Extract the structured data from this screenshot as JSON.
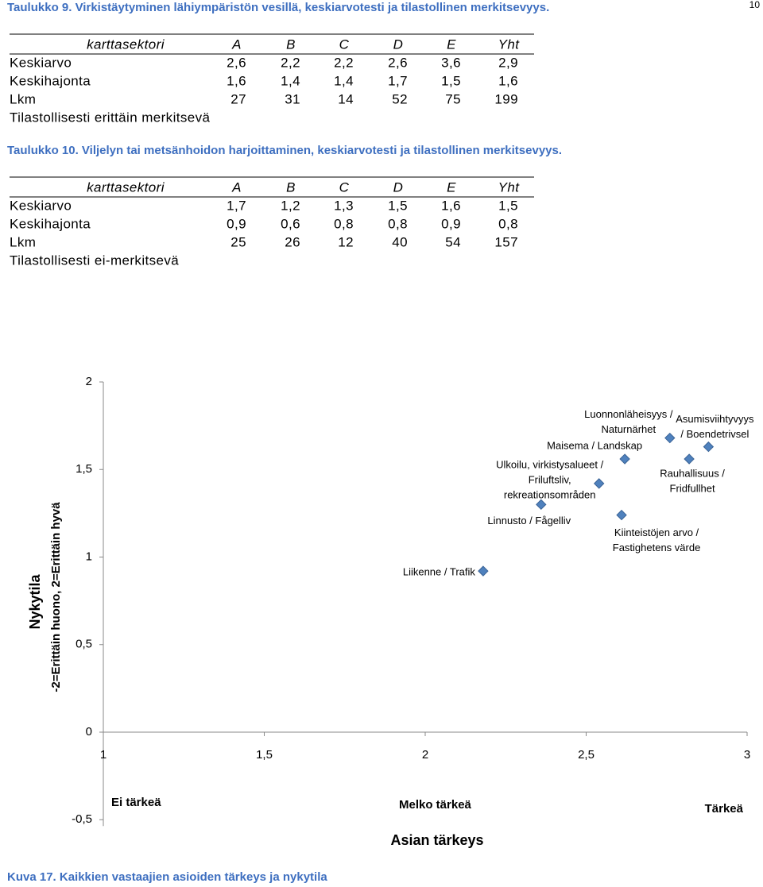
{
  "page_number": "10",
  "tables": [
    {
      "caption": "Taulukko 9. Virkistäytyminen lähiympäristön vesillä, keskiarvotesti ja tilastollinen merkitsevyys.",
      "columns": [
        "karttasektori",
        "A",
        "B",
        "C",
        "D",
        "E",
        "Yht"
      ],
      "rows": [
        [
          "Keskiarvo",
          "2,6",
          "2,2",
          "2,2",
          "2,6",
          "3,6",
          "2,9"
        ],
        [
          "Keskihajonta",
          "1,6",
          "1,4",
          "1,4",
          "1,7",
          "1,5",
          "1,6"
        ],
        [
          "Lkm",
          "27",
          "31",
          "14",
          "52",
          "75",
          "199"
        ]
      ],
      "note": "Tilastollisesti erittäin merkitsevä"
    },
    {
      "caption": "Taulukko 10. Viljelyn tai metsänhoidon harjoittaminen, keskiarvotesti ja tilastollinen merkitsevyys.",
      "columns": [
        "karttasektori",
        "A",
        "B",
        "C",
        "D",
        "E",
        "Yht"
      ],
      "rows": [
        [
          "Keskiarvo",
          "1,7",
          "1,2",
          "1,3",
          "1,5",
          "1,6",
          "1,5"
        ],
        [
          "Keskihajonta",
          "0,9",
          "0,6",
          "0,8",
          "0,8",
          "0,9",
          "0,8"
        ],
        [
          "Lkm",
          "25",
          "26",
          "12",
          "40",
          "54",
          "157"
        ]
      ],
      "note": "Tilastollisesti ei-merkitsevä"
    }
  ],
  "chart_data": {
    "type": "scatter",
    "x": [
      2.18,
      2.36,
      2.54,
      2.62,
      2.61,
      2.76,
      2.82,
      2.88
    ],
    "values": [
      0.92,
      1.3,
      1.42,
      1.56,
      1.24,
      1.68,
      1.56,
      1.63
    ],
    "point_labels": [
      [
        "Liikenne / Trafik"
      ],
      [
        "Linnusto / Fågelliv"
      ],
      [
        "Ulkoilu, virkistysalueet /",
        "Friluftsliv,",
        "rekreationsområden"
      ],
      [
        "Maisema / Landskap"
      ],
      [
        "Kiinteistöjen arvo /",
        "Fastighetens värde"
      ],
      [
        "Luonnonläheisyys /",
        "Naturnärhet"
      ],
      [
        "Rauhallisuus /",
        "Fridfullhet"
      ],
      [
        "Asumisviihtyvyys",
        "/ Boendetrivsel"
      ]
    ],
    "color": "#4f81bd",
    "xlim": [
      1,
      3
    ],
    "xticks": [
      1,
      {
        "value": 1.5,
        "label": "1,5"
      },
      2,
      {
        "value": 2.5,
        "label": "2,5"
      },
      3
    ],
    "ylim": [
      -0.5,
      2
    ],
    "yticks": [
      {
        "value": -0.5,
        "label": "-0,5"
      },
      0,
      {
        "value": 0.5,
        "label": "0,5"
      },
      1,
      {
        "value": 1.5,
        "label": "1,5"
      },
      2
    ],
    "x_label": "Asian tärkeys",
    "y_label": [
      "Nykytila",
      "-2=Erittäin huono, 2=Erittäin hyvä"
    ],
    "annotations": [
      "Ei tärkeä",
      "Melko tärkeä",
      "Tärkeä"
    ],
    "caption": "Kuva 17. Kaikkien vastaajien asioiden tärkeys ja nykytila"
  }
}
